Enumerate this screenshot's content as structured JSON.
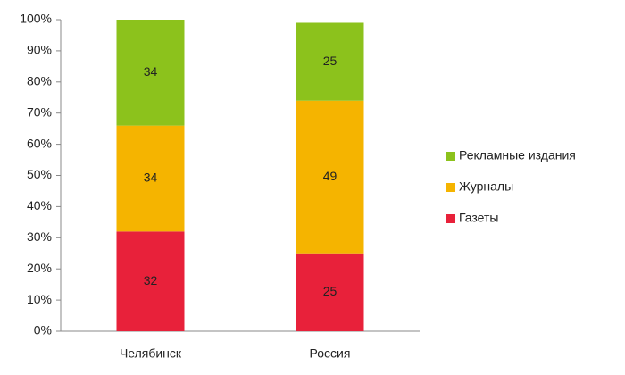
{
  "chart_data": {
    "type": "stacked-bar",
    "categories": [
      "Челябинск",
      "Россия"
    ],
    "series": [
      {
        "name": "Газеты",
        "color": "#e8213a",
        "values": [
          32,
          25
        ]
      },
      {
        "name": "Журналы",
        "color": "#f5b400",
        "values": [
          34,
          49
        ]
      },
      {
        "name": "Рекламные издания",
        "color": "#8cc21c",
        "values": [
          34,
          25
        ]
      }
    ],
    "ylim": [
      0,
      100
    ],
    "yticks": [
      {
        "value": 0,
        "label": "0%"
      },
      {
        "value": 10,
        "label": "10%"
      },
      {
        "value": 20,
        "label": "20%"
      },
      {
        "value": 30,
        "label": "30%"
      },
      {
        "value": 40,
        "label": "40%"
      },
      {
        "value": 50,
        "label": "50%"
      },
      {
        "value": 60,
        "label": "60%"
      },
      {
        "value": 70,
        "label": "70%"
      },
      {
        "value": 80,
        "label": "80%"
      },
      {
        "value": 90,
        "label": "90%"
      },
      {
        "value": 100,
        "label": "100%"
      }
    ],
    "grid": false,
    "legend": "right"
  }
}
